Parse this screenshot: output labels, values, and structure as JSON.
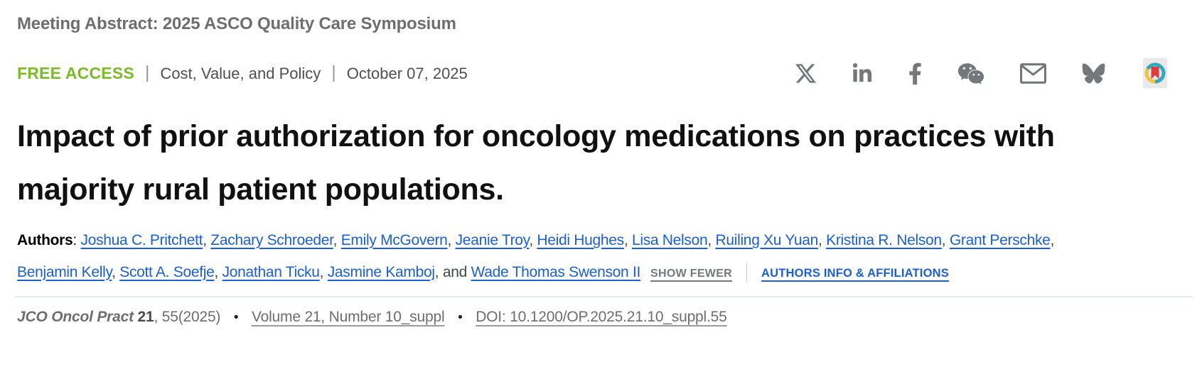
{
  "page": {
    "eyebrow": "Meeting Abstract: 2025 ASCO Quality Care Symposium",
    "access_label": "FREE ACCESS",
    "category": "Cost, Value, and Policy",
    "date": "October 07, 2025",
    "title": "Impact of prior authorization for oncology medications on practices with majority rural patient populations."
  },
  "social": {
    "icons": [
      "x-twitter",
      "linkedin",
      "facebook",
      "wechat",
      "email",
      "bluesky",
      "readcube-papers"
    ]
  },
  "authors": {
    "label": "Authors",
    "colon": ":",
    "list": [
      "Joshua C. Pritchett",
      "Zachary Schroeder",
      "Emily McGovern",
      "Jeanie Troy",
      "Heidi Hughes",
      "Lisa Nelson",
      "Ruiling Xu Yuan",
      "Kristina R. Nelson",
      "Grant Perschke",
      "Benjamin Kelly",
      "Scott A. Soefje",
      "Jonathan Ticku",
      "Jasmine Kamboj",
      "Wade Thomas Swenson II"
    ],
    "conjunction": "and",
    "show_fewer_label": "SHOW FEWER",
    "info_link_label": "AUTHORS INFO & AFFILIATIONS"
  },
  "citation": {
    "journal": "JCO Oncol Pract",
    "volume_bold": "21",
    "pages_year": ", 55(2025)",
    "issue_link": "Volume 21, Number 10_suppl",
    "doi_link": "DOI: 10.1200/OP.2025.21.10_suppl.55"
  },
  "colors": {
    "free_access_green": "#7DB928",
    "link_blue": "#1C5FCE",
    "heading_gray": "#6E6E6E",
    "icon_gray": "#75787B",
    "divider_gray": "#E7EAEE",
    "title_black": "#111111"
  }
}
